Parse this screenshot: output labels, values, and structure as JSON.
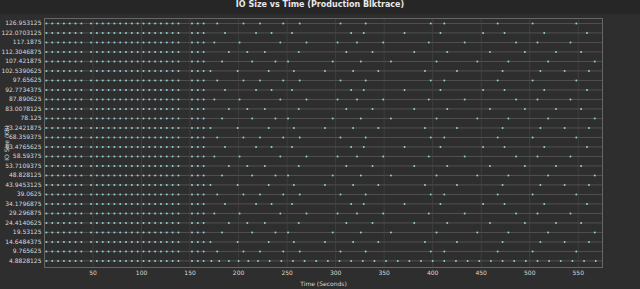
{
  "chart_data": {
    "type": "scatter",
    "title": "IO Size vs Time (Production Blktrace)",
    "x_label": "Time (Seconds)",
    "y_label": "IO Size (KB)",
    "xlim": [
      0,
      575
    ],
    "ylim": [
      1.5,
      129.5
    ],
    "xticks": [
      50,
      100,
      150,
      200,
      250,
      300,
      350,
      400,
      450,
      500,
      550
    ],
    "yticks": [
      4.8828125,
      9.765625,
      14.6484375,
      19.53125,
      24.4140625,
      29.296875,
      34.1796875,
      39.0625,
      43.9453125,
      48.828125,
      53.7109375,
      58.59375,
      63.4765625,
      68.359375,
      73.2421875,
      78.125,
      83.0078125,
      87.890625,
      92.7734375,
      97.65625,
      102.5390625,
      107.421875,
      112.3046875,
      117.1875,
      122.0703125,
      126.953125
    ],
    "grid": true,
    "color": "#8fd0d4",
    "points": [
      {
        "y": 4.8828125,
        "x": [
          2,
          8,
          14,
          20,
          26,
          32,
          38,
          48,
          54,
          60,
          66,
          72,
          78,
          84,
          90,
          96,
          102,
          108,
          114,
          120,
          126,
          132,
          138,
          152,
          158,
          164,
          172,
          180,
          190,
          200,
          210,
          220,
          232,
          244,
          256,
          268,
          280,
          292,
          304,
          316,
          328,
          340,
          352,
          364,
          376,
          388,
          400,
          412,
          424,
          436,
          448,
          460,
          472,
          484,
          496,
          508,
          520,
          532,
          544,
          556,
          568
        ]
      },
      {
        "y": 9.765625,
        "x": [
          2,
          8,
          14,
          20,
          26,
          32,
          38,
          48,
          54,
          60,
          66,
          72,
          78,
          84,
          90,
          96,
          102,
          108,
          114,
          120,
          126,
          132,
          138,
          152,
          158,
          164,
          178,
          205,
          222,
          246,
          263,
          305,
          331,
          398,
          412,
          467,
          503,
          548
        ]
      },
      {
        "y": 14.6484375,
        "x": [
          2,
          8,
          14,
          20,
          26,
          32,
          38,
          48,
          54,
          60,
          66,
          72,
          78,
          84,
          90,
          96,
          102,
          108,
          114,
          120,
          126,
          132,
          138,
          152,
          158,
          164,
          171,
          199,
          231,
          257,
          289,
          318,
          344,
          392,
          425,
          472,
          511,
          536,
          561
        ]
      },
      {
        "y": 19.53125,
        "x": [
          2,
          8,
          14,
          20,
          26,
          32,
          38,
          48,
          54,
          60,
          66,
          72,
          78,
          84,
          90,
          96,
          102,
          108,
          114,
          120,
          126,
          132,
          138,
          152,
          158,
          164,
          183,
          214,
          238,
          251,
          297,
          326,
          357,
          404,
          446,
          478,
          519,
          567
        ]
      },
      {
        "y": 24.4140625,
        "x": [
          2,
          8,
          14,
          20,
          26,
          32,
          38,
          48,
          54,
          60,
          66,
          72,
          78,
          84,
          90,
          96,
          102,
          108,
          114,
          120,
          126,
          132,
          138,
          152,
          158,
          164,
          190,
          209,
          227,
          262,
          311,
          338,
          381,
          415,
          459,
          495,
          527,
          553
        ]
      },
      {
        "y": 29.296875,
        "x": [
          2,
          8,
          14,
          20,
          26,
          32,
          38,
          48,
          54,
          60,
          66,
          72,
          78,
          84,
          90,
          96,
          102,
          108,
          114,
          120,
          126,
          132,
          138,
          152,
          158,
          164,
          175,
          201,
          243,
          270,
          302,
          322,
          349,
          396,
          433,
          486,
          508,
          542
        ]
      },
      {
        "y": 34.1796875,
        "x": [
          2,
          8,
          14,
          20,
          26,
          32,
          38,
          48,
          54,
          60,
          66,
          72,
          78,
          84,
          90,
          96,
          102,
          108,
          114,
          120,
          126,
          132,
          138,
          152,
          158,
          164,
          186,
          218,
          234,
          255,
          316,
          329,
          371,
          408,
          452,
          474,
          515,
          559
        ]
      },
      {
        "y": 39.0625,
        "x": [
          2,
          8,
          14,
          20,
          26,
          32,
          38,
          48,
          54,
          60,
          66,
          72,
          78,
          84,
          90,
          96,
          102,
          108,
          114,
          120,
          126,
          132,
          138,
          152,
          158,
          164,
          178,
          205,
          222,
          246,
          263,
          305,
          331,
          398,
          412,
          467,
          503,
          548
        ]
      },
      {
        "y": 43.9453125,
        "x": [
          2,
          8,
          14,
          20,
          26,
          32,
          38,
          48,
          54,
          60,
          66,
          72,
          78,
          84,
          90,
          96,
          102,
          108,
          114,
          120,
          126,
          132,
          138,
          152,
          158,
          164,
          171,
          199,
          231,
          257,
          289,
          318,
          344,
          392,
          425,
          472,
          511,
          536,
          561
        ]
      },
      {
        "y": 48.828125,
        "x": [
          2,
          8,
          14,
          20,
          26,
          32,
          38,
          48,
          54,
          60,
          66,
          72,
          78,
          84,
          90,
          96,
          102,
          108,
          114,
          120,
          126,
          132,
          138,
          152,
          158,
          164,
          183,
          214,
          238,
          251,
          297,
          326,
          357,
          404,
          446,
          478,
          519,
          567
        ]
      },
      {
        "y": 53.7109375,
        "x": [
          2,
          8,
          14,
          20,
          26,
          32,
          38,
          48,
          54,
          60,
          66,
          72,
          78,
          84,
          90,
          96,
          102,
          108,
          114,
          120,
          126,
          132,
          138,
          152,
          158,
          164,
          190,
          209,
          227,
          262,
          311,
          338,
          381,
          415,
          459,
          495,
          527,
          553
        ]
      },
      {
        "y": 58.59375,
        "x": [
          2,
          8,
          14,
          20,
          26,
          32,
          38,
          48,
          54,
          60,
          66,
          72,
          78,
          84,
          90,
          96,
          102,
          108,
          114,
          120,
          126,
          132,
          138,
          152,
          158,
          164,
          175,
          201,
          243,
          270,
          302,
          322,
          349,
          396,
          433,
          486,
          508,
          542
        ]
      },
      {
        "y": 63.4765625,
        "x": [
          2,
          8,
          14,
          20,
          26,
          32,
          38,
          48,
          54,
          60,
          66,
          72,
          78,
          84,
          90,
          96,
          102,
          108,
          114,
          120,
          126,
          132,
          138,
          152,
          158,
          164,
          186,
          218,
          234,
          255,
          316,
          329,
          371,
          408,
          452,
          474,
          515,
          559
        ]
      },
      {
        "y": 68.359375,
        "x": [
          2,
          8,
          14,
          20,
          26,
          32,
          38,
          48,
          54,
          60,
          66,
          72,
          78,
          84,
          90,
          96,
          102,
          108,
          114,
          120,
          126,
          132,
          138,
          152,
          158,
          164,
          178,
          205,
          222,
          246,
          263,
          305,
          331,
          398,
          412,
          467,
          503,
          548
        ]
      },
      {
        "y": 73.2421875,
        "x": [
          2,
          8,
          14,
          20,
          26,
          32,
          38,
          48,
          54,
          60,
          66,
          72,
          78,
          84,
          90,
          96,
          102,
          108,
          114,
          120,
          126,
          132,
          138,
          152,
          158,
          164,
          171,
          199,
          231,
          257,
          289,
          318,
          344,
          392,
          425,
          472,
          511,
          536,
          561
        ]
      },
      {
        "y": 78.125,
        "x": [
          2,
          8,
          14,
          20,
          26,
          32,
          38,
          48,
          54,
          60,
          66,
          72,
          78,
          84,
          90,
          96,
          102,
          108,
          114,
          120,
          126,
          132,
          138,
          152,
          158,
          164,
          183,
          214,
          238,
          251,
          297,
          326,
          357,
          404,
          446,
          478,
          519,
          567
        ]
      },
      {
        "y": 83.0078125,
        "x": [
          2,
          8,
          14,
          20,
          26,
          32,
          38,
          48,
          54,
          60,
          66,
          72,
          78,
          84,
          90,
          96,
          102,
          108,
          114,
          120,
          126,
          132,
          138,
          152,
          158,
          164,
          190,
          209,
          227,
          262,
          311,
          338,
          381,
          415,
          459,
          495,
          527,
          553
        ]
      },
      {
        "y": 87.890625,
        "x": [
          2,
          8,
          14,
          20,
          26,
          32,
          38,
          48,
          54,
          60,
          66,
          72,
          78,
          84,
          90,
          96,
          102,
          108,
          114,
          120,
          126,
          132,
          138,
          152,
          158,
          164,
          175,
          201,
          243,
          270,
          302,
          322,
          349,
          396,
          433,
          486,
          508,
          542
        ]
      },
      {
        "y": 92.7734375,
        "x": [
          2,
          8,
          14,
          20,
          26,
          32,
          38,
          48,
          54,
          60,
          66,
          72,
          78,
          84,
          90,
          96,
          102,
          108,
          114,
          120,
          126,
          132,
          138,
          152,
          158,
          164,
          186,
          218,
          234,
          255,
          316,
          329,
          371,
          408,
          452,
          474,
          515,
          559
        ]
      },
      {
        "y": 97.65625,
        "x": [
          2,
          8,
          14,
          20,
          26,
          32,
          38,
          48,
          54,
          60,
          66,
          72,
          78,
          84,
          90,
          96,
          102,
          108,
          114,
          120,
          126,
          132,
          138,
          152,
          158,
          164,
          178,
          205,
          222,
          246,
          263,
          305,
          331,
          398,
          412,
          467,
          503,
          548
        ]
      },
      {
        "y": 102.5390625,
        "x": [
          2,
          8,
          14,
          20,
          26,
          32,
          38,
          48,
          54,
          60,
          66,
          72,
          78,
          84,
          90,
          96,
          102,
          108,
          114,
          120,
          126,
          132,
          138,
          152,
          158,
          164,
          171,
          199,
          231,
          257,
          289,
          318,
          344,
          392,
          425,
          472,
          511,
          536,
          561
        ]
      },
      {
        "y": 107.421875,
        "x": [
          2,
          8,
          14,
          20,
          26,
          32,
          38,
          48,
          54,
          60,
          66,
          72,
          78,
          84,
          90,
          96,
          102,
          108,
          114,
          120,
          126,
          132,
          138,
          152,
          158,
          164,
          183,
          214,
          238,
          251,
          297,
          326,
          357,
          404,
          446,
          478,
          519,
          567
        ]
      },
      {
        "y": 112.3046875,
        "x": [
          2,
          8,
          14,
          20,
          26,
          32,
          38,
          48,
          54,
          60,
          66,
          72,
          78,
          84,
          90,
          96,
          102,
          108,
          114,
          120,
          126,
          132,
          138,
          152,
          158,
          164,
          190,
          209,
          227,
          262,
          311,
          338,
          381,
          415,
          459,
          495,
          527,
          553
        ]
      },
      {
        "y": 117.1875,
        "x": [
          2,
          8,
          14,
          20,
          26,
          32,
          38,
          48,
          54,
          60,
          66,
          72,
          78,
          84,
          90,
          96,
          102,
          108,
          114,
          120,
          126,
          132,
          138,
          152,
          158,
          164,
          175,
          201,
          243,
          270,
          302,
          322,
          349,
          396,
          433,
          486,
          508,
          542
        ]
      },
      {
        "y": 122.0703125,
        "x": [
          2,
          8,
          14,
          20,
          26,
          32,
          38,
          48,
          54,
          60,
          66,
          72,
          78,
          84,
          90,
          96,
          102,
          108,
          114,
          120,
          126,
          132,
          138,
          152,
          158,
          164,
          186,
          218,
          234,
          255,
          316,
          329,
          371,
          408,
          452,
          474,
          515,
          559
        ]
      },
      {
        "y": 126.953125,
        "x": [
          2,
          8,
          14,
          20,
          26,
          32,
          38,
          48,
          54,
          60,
          66,
          72,
          78,
          84,
          90,
          96,
          102,
          108,
          114,
          120,
          126,
          132,
          138,
          152,
          158,
          164,
          178,
          205,
          222,
          246,
          263,
          305,
          331,
          398,
          412,
          467,
          503,
          548
        ]
      }
    ]
  }
}
